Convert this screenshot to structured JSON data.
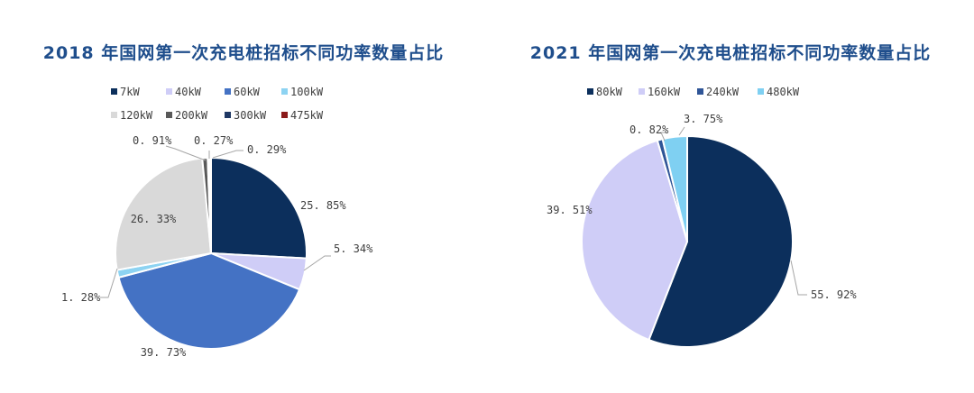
{
  "chart_data": [
    {
      "type": "pie",
      "title": "2018 年国网第一次充电桩招标不同功率数量占比",
      "categories": [
        "7kW",
        "40kW",
        "60kW",
        "100kW",
        "120kW",
        "200kW",
        "300kW",
        "475kW"
      ],
      "values": [
        25.85,
        5.34,
        39.73,
        1.28,
        26.33,
        0.91,
        0.27,
        0.29
      ],
      "labels": [
        "25. 85%",
        "5. 34%",
        "39. 73%",
        "1. 28%",
        "26. 33%",
        "0. 91%",
        "0. 27%",
        "0. 29%"
      ],
      "colors": [
        "#0c2f5c",
        "#cfcdf7",
        "#4472c4",
        "#8dd3f2",
        "#d9d9d9",
        "#595959",
        "#1f3864",
        "#8b1a1a"
      ],
      "legend_position": "top",
      "start_angle_deg": 0,
      "direction": "clockwise"
    },
    {
      "type": "pie",
      "title": "2021 年国网第一次充电桩招标不同功率数量占比",
      "categories": [
        "80kW",
        "160kW",
        "240kW",
        "480kW"
      ],
      "values": [
        55.92,
        39.51,
        0.82,
        3.75
      ],
      "labels": [
        "55. 92%",
        "39. 51%",
        "0. 82%",
        "3. 75%"
      ],
      "colors": [
        "#0c2f5c",
        "#cfcdf7",
        "#2f5597",
        "#7fd0f2"
      ],
      "legend_position": "top",
      "start_angle_deg": 0,
      "direction": "clockwise"
    }
  ]
}
